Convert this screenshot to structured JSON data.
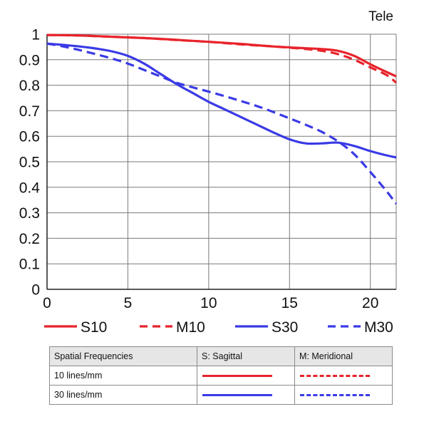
{
  "chart_data": {
    "type": "line",
    "corner_label": "Tele",
    "xlim": [
      0,
      21.6
    ],
    "ylim": [
      0,
      1
    ],
    "x_ticks": [
      "0",
      "5",
      "10",
      "15",
      "20"
    ],
    "y_ticks": [
      "0",
      "0.1",
      "0.2",
      "0.3",
      "0.4",
      "0.5",
      "0.6",
      "0.7",
      "0.8",
      "0.9",
      "1"
    ],
    "grid": true,
    "legend_position": "bottom",
    "series": [
      {
        "name": "S10",
        "color": "#e8232b",
        "dash": "solid",
        "x": [
          0,
          2,
          4,
          6,
          8,
          10,
          12,
          14,
          16,
          17,
          18,
          19,
          20,
          21,
          21.6
        ],
        "y": [
          0.997,
          0.995,
          0.99,
          0.985,
          0.978,
          0.97,
          0.962,
          0.952,
          0.945,
          0.942,
          0.935,
          0.915,
          0.882,
          0.852,
          0.835
        ]
      },
      {
        "name": "M10",
        "color": "#e8232b",
        "dash": "dashed",
        "x": [
          0,
          2,
          4,
          6,
          8,
          10,
          12,
          14,
          16,
          17,
          18,
          19,
          20,
          21,
          21.6
        ],
        "y": [
          0.997,
          0.995,
          0.99,
          0.985,
          0.977,
          0.97,
          0.96,
          0.952,
          0.942,
          0.935,
          0.922,
          0.9,
          0.87,
          0.84,
          0.81
        ]
      },
      {
        "name": "S30",
        "color": "#3a3ae6",
        "dash": "solid",
        "x": [
          0,
          1,
          2,
          3,
          4,
          5,
          6,
          7,
          8,
          9,
          10,
          11,
          12,
          13,
          14,
          15,
          16,
          17,
          18,
          19,
          20,
          21,
          21.6
        ],
        "y": [
          0.963,
          0.958,
          0.952,
          0.944,
          0.933,
          0.915,
          0.885,
          0.845,
          0.805,
          0.77,
          0.735,
          0.705,
          0.675,
          0.645,
          0.615,
          0.588,
          0.572,
          0.572,
          0.575,
          0.562,
          0.542,
          0.525,
          0.517
        ]
      },
      {
        "name": "M30",
        "color": "#3a3ae6",
        "dash": "dashed",
        "x": [
          0,
          1,
          2,
          3,
          4,
          5,
          6,
          7,
          8,
          9,
          10,
          11,
          12,
          13,
          14,
          15,
          16,
          17,
          18,
          19,
          20,
          21,
          21.6
        ],
        "y": [
          0.963,
          0.952,
          0.938,
          0.922,
          0.905,
          0.885,
          0.86,
          0.835,
          0.81,
          0.792,
          0.775,
          0.757,
          0.738,
          0.718,
          0.695,
          0.67,
          0.645,
          0.617,
          0.58,
          0.53,
          0.46,
          0.385,
          0.335
        ]
      }
    ]
  },
  "table": {
    "headers": [
      "Spatial Frequencies",
      "S: Sagittal",
      "M: Meridional"
    ],
    "rows": [
      {
        "label": "10 lines/mm",
        "color": "#e8232b"
      },
      {
        "label": "30 lines/mm",
        "color": "#3a3ae6"
      }
    ]
  }
}
